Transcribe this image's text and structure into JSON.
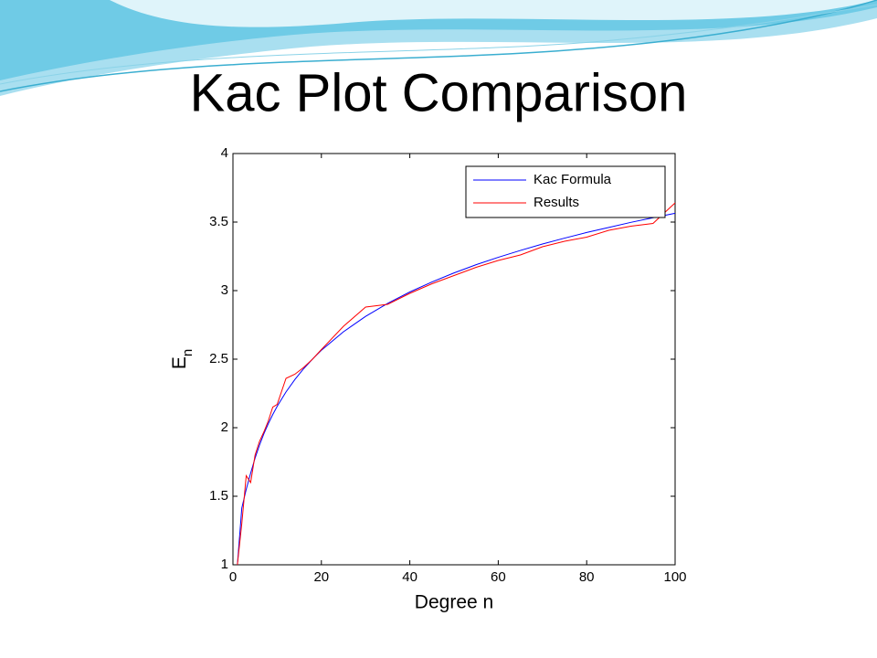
{
  "chart_data": {
    "type": "line",
    "title": "Kac Plot Comparison",
    "xlabel": "Degree n",
    "ylabel": "E",
    "ylabel_subscript": "n",
    "x": [
      1,
      2,
      3,
      4,
      5,
      6,
      7,
      8,
      9,
      10,
      12,
      14,
      16,
      18,
      20,
      25,
      30,
      35,
      40,
      45,
      50,
      55,
      60,
      65,
      70,
      75,
      80,
      85,
      90,
      95,
      100
    ],
    "series": [
      {
        "name": "Kac Formula",
        "color": "#0000ff",
        "values": [
          1.0,
          1.414,
          1.55,
          1.668,
          1.778,
          1.873,
          1.956,
          2.03,
          2.096,
          2.156,
          2.261,
          2.351,
          2.431,
          2.501,
          2.565,
          2.7,
          2.812,
          2.907,
          2.99,
          3.063,
          3.129,
          3.189,
          3.243,
          3.293,
          3.34,
          3.383,
          3.424,
          3.461,
          3.498,
          3.532,
          3.564
        ]
      },
      {
        "name": "Results",
        "color": "#ff0000",
        "values": [
          1.0,
          1.3,
          1.65,
          1.6,
          1.8,
          1.9,
          1.97,
          2.05,
          2.15,
          2.17,
          2.36,
          2.39,
          2.44,
          2.5,
          2.57,
          2.74,
          2.88,
          2.9,
          2.98,
          3.05,
          3.11,
          3.17,
          3.22,
          3.26,
          3.32,
          3.36,
          3.39,
          3.44,
          3.47,
          3.49,
          3.64
        ]
      }
    ],
    "xlim": [
      0,
      100
    ],
    "xticks": [
      0,
      20,
      40,
      60,
      80,
      100
    ],
    "ylim": [
      1,
      4
    ],
    "yticks": [
      1,
      1.5,
      2,
      2.5,
      3,
      3.5,
      4
    ],
    "legend": "upper-right",
    "grid": false
  }
}
